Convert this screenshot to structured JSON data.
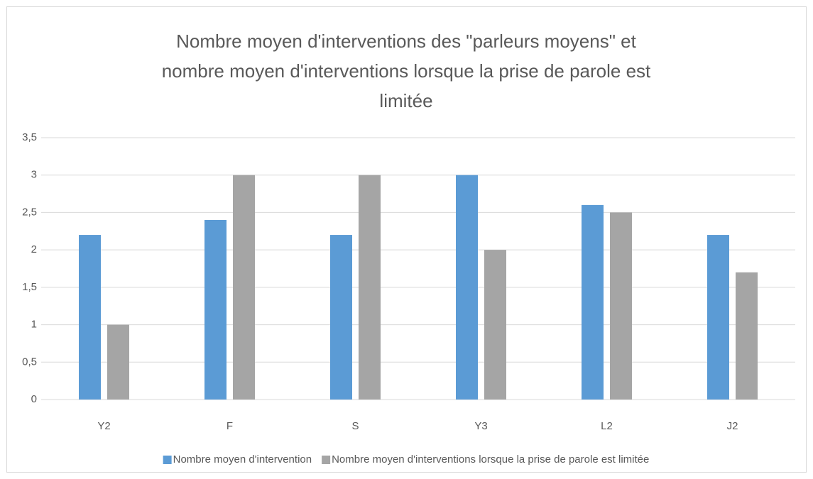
{
  "chart_data": {
    "type": "bar",
    "title": [
      "Nombre moyen d'interventions des \"parleurs moyens\" et",
      "nombre moyen d'interventions lorsque la prise de parole est",
      "limitée"
    ],
    "categories": [
      "Y2",
      "F",
      "S",
      "Y3",
      "L2",
      "J2"
    ],
    "series": [
      {
        "name": "Nombre moyen d'intervention",
        "color": "#5b9bd5",
        "values": [
          2.2,
          2.4,
          2.2,
          3,
          2.6,
          2.2
        ]
      },
      {
        "name": "Nombre moyen d'interventions lorsque la prise de parole est limitée",
        "color": "#a5a5a5",
        "values": [
          1,
          3,
          3,
          2,
          2.5,
          1.7
        ]
      }
    ],
    "ylim": [
      0,
      3.5
    ],
    "yticks": [
      0,
      {
        "value": 0.5,
        "label": "0,5"
      },
      1,
      {
        "value": 1.5,
        "label": "1,5"
      },
      2,
      {
        "value": 2.5,
        "label": "2,5"
      },
      3,
      {
        "value": 3.5,
        "label": "3,5"
      }
    ],
    "grid": true,
    "legend": "bottom"
  }
}
